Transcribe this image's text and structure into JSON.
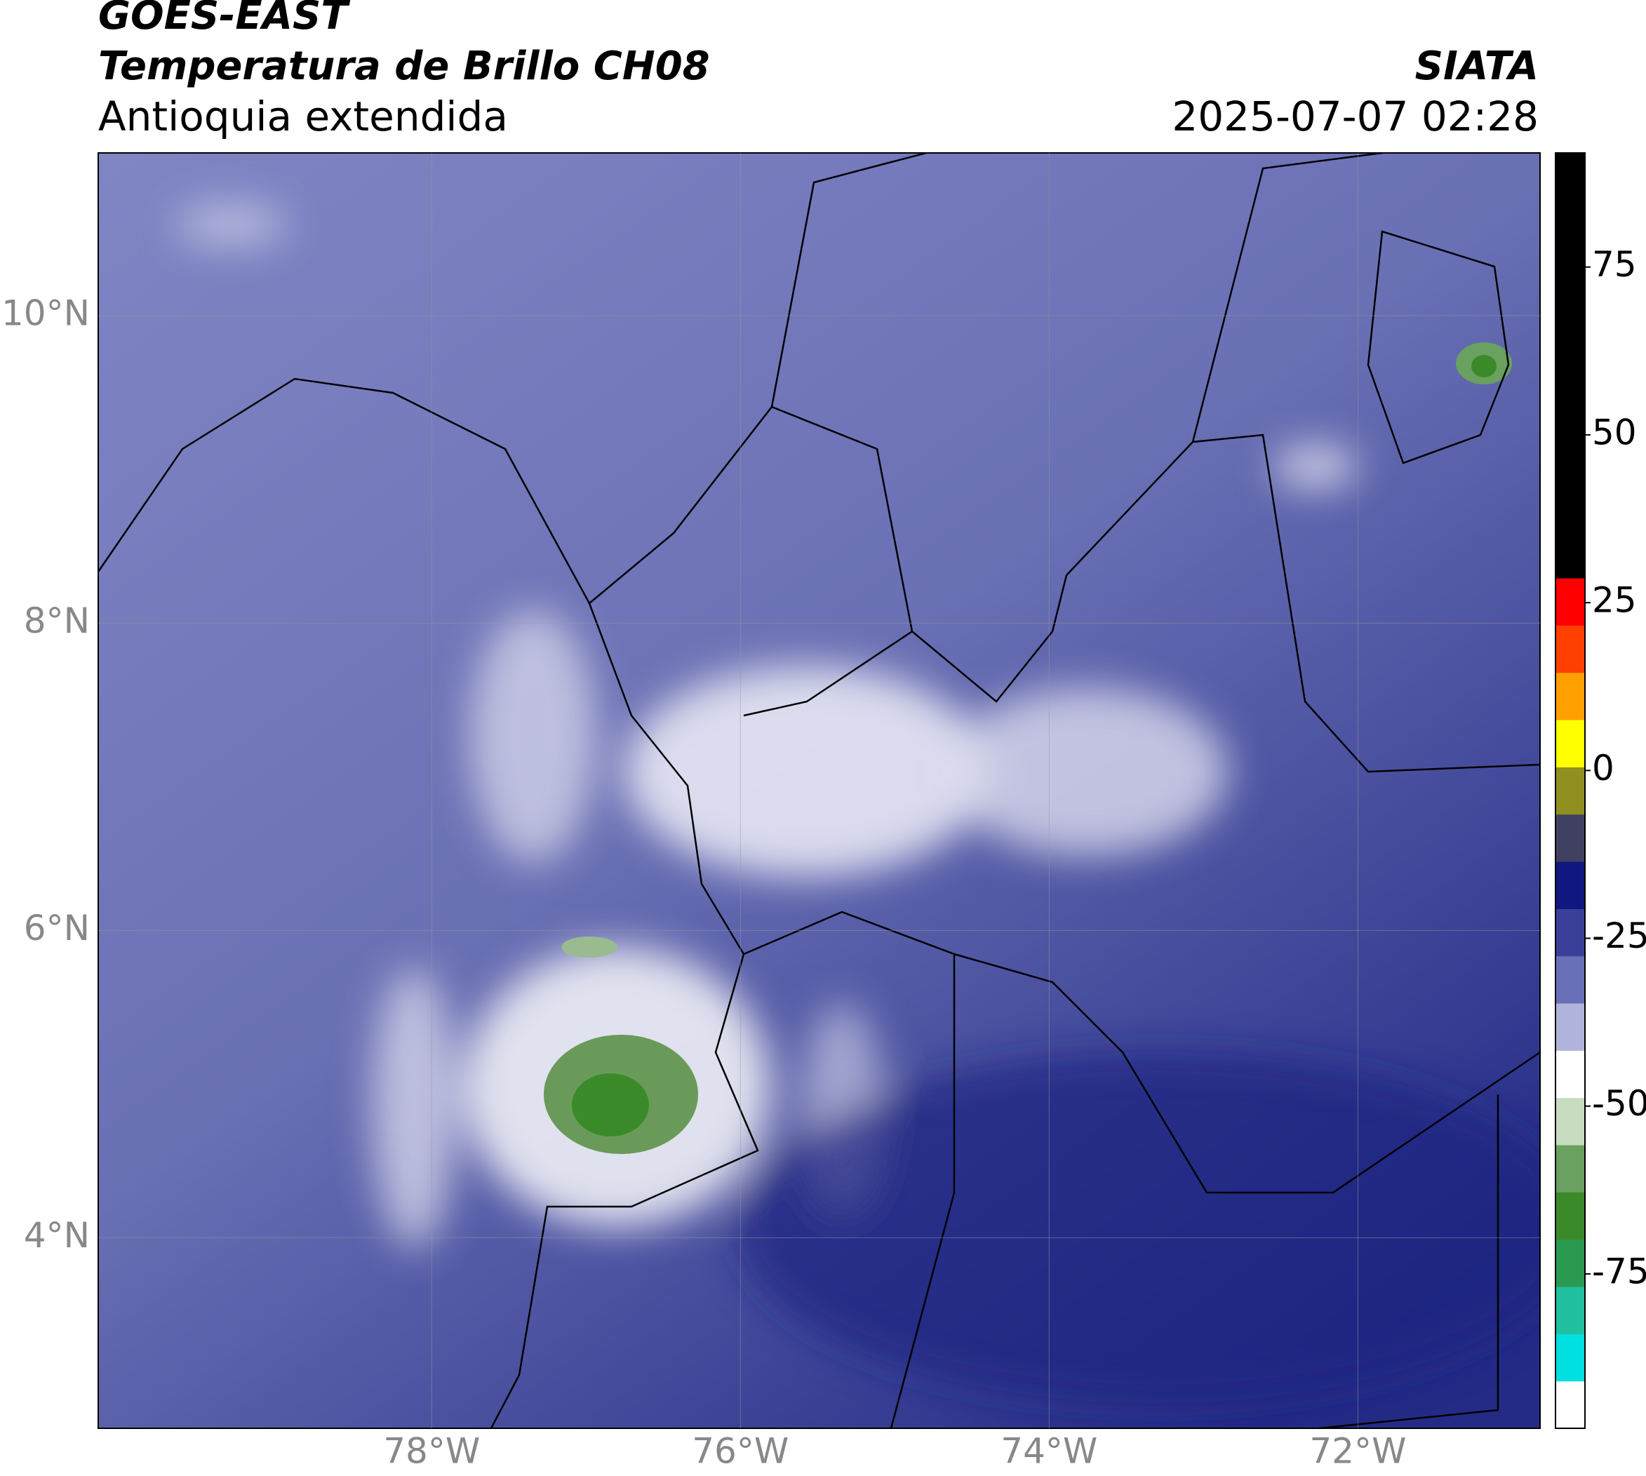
{
  "header": {
    "title": "GOES-EAST",
    "subtitle": "Temperatura de Brillo CH08",
    "region": "Antioquia extendida",
    "source": "SIATA",
    "datetime": "2025-07-07 02:28"
  },
  "map": {
    "xlim": [
      -80.16,
      -70.82
    ],
    "ylim": [
      2.76,
      11.06
    ],
    "xticks": [
      {
        "value": -78,
        "label": "78°W"
      },
      {
        "value": -76,
        "label": "76°W"
      },
      {
        "value": -74,
        "label": "74°W"
      },
      {
        "value": -72,
        "label": "72°W"
      }
    ],
    "yticks": [
      {
        "value": 4,
        "label": "4°N"
      },
      {
        "value": 6,
        "label": "6°N"
      },
      {
        "value": 8,
        "label": "8°N"
      },
      {
        "value": 10,
        "label": "10°N"
      }
    ],
    "grid": true
  },
  "colorbar": {
    "lim": [
      -98,
      92
    ],
    "ticks": [
      -75,
      -50,
      -25,
      0,
      25,
      50,
      75
    ],
    "colors": [
      "#ffffff",
      "#00e0e0",
      "#20c0a0",
      "#2a9a50",
      "#3a8a2a",
      "#6aa060",
      "#c8dcc0",
      "#ffffff",
      "#b0b4dc",
      "#6a70b8",
      "#3a3f9a",
      "#101880",
      "#404060",
      "#909020",
      "#ffff00",
      "#ffa000",
      "#ff4000",
      "#ff0000",
      "#000000",
      "#000000",
      "#000000",
      "#000000",
      "#000000",
      "#000000",
      "#000000",
      "#000000",
      "#000000"
    ]
  }
}
